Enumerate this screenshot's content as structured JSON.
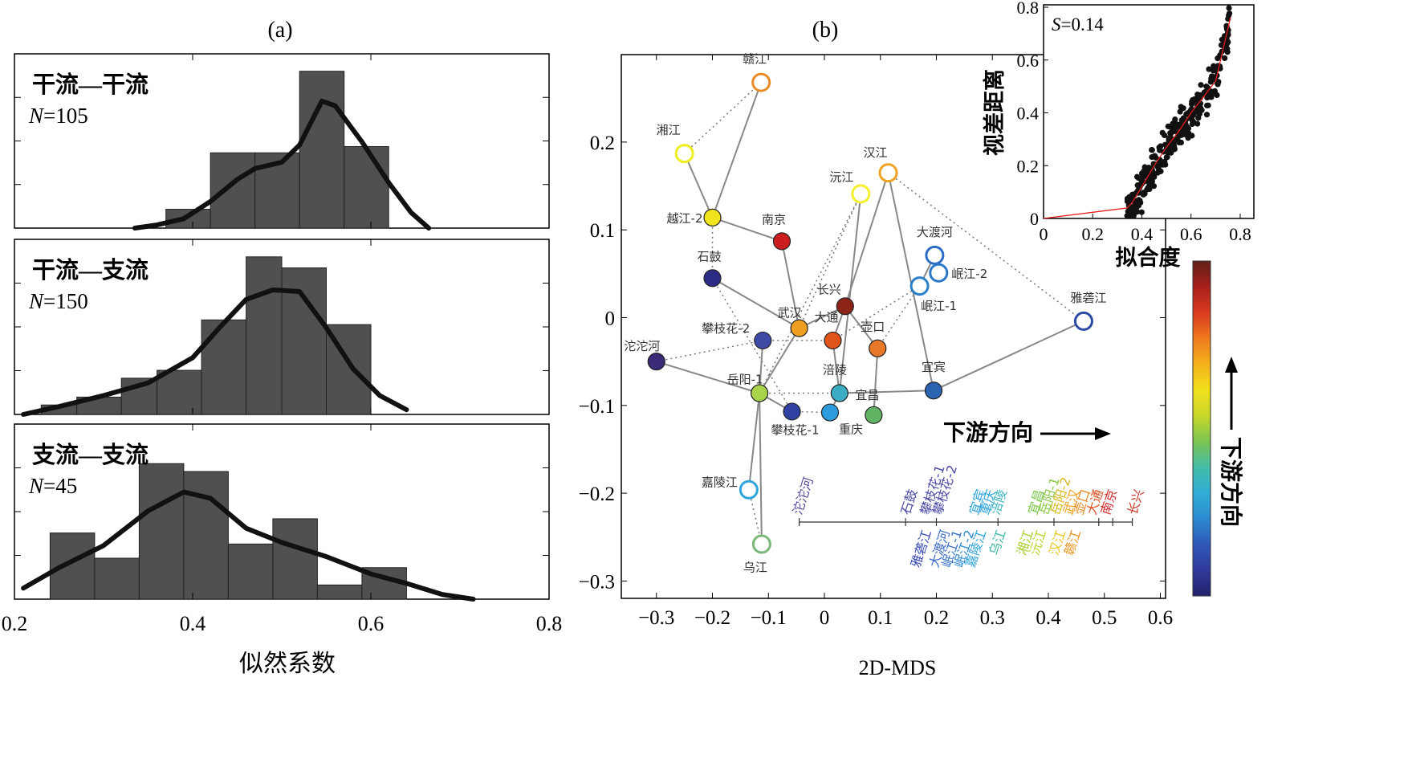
{
  "chart_data": [
    {
      "type": "bar",
      "panel_label": "(a)",
      "xlabel": "似然系数",
      "xlim": [
        0.2,
        0.8
      ],
      "xticks": [
        "0.2",
        "0.4",
        "0.6",
        "0.8"
      ],
      "subplots": [
        {
          "title": "干流—干流",
          "n_label": "N",
          "n_value": "=105",
          "bin_edges": [
            0.37,
            0.42,
            0.47,
            0.52,
            0.57,
            0.62
          ],
          "heights": [
            0.12,
            0.48,
            0.48,
            1.0,
            0.52
          ],
          "curve": [
            [
              0.335,
              0.0
            ],
            [
              0.36,
              0.02
            ],
            [
              0.39,
              0.06
            ],
            [
              0.42,
              0.17
            ],
            [
              0.45,
              0.31
            ],
            [
              0.47,
              0.38
            ],
            [
              0.5,
              0.42
            ],
            [
              0.52,
              0.53
            ],
            [
              0.545,
              0.81
            ],
            [
              0.56,
              0.78
            ],
            [
              0.59,
              0.55
            ],
            [
              0.62,
              0.29
            ],
            [
              0.645,
              0.1
            ],
            [
              0.665,
              0.0
            ]
          ]
        },
        {
          "title": "干流—支流",
          "n_label": "N",
          "n_value": "=150",
          "bin_edges": [
            0.23,
            0.27,
            0.32,
            0.36,
            0.41,
            0.46,
            0.5,
            0.55,
            0.6
          ],
          "heights": [
            0.06,
            0.11,
            0.23,
            0.28,
            0.6,
            1.0,
            0.93,
            0.57,
            0.11
          ],
          "curve": [
            [
              0.21,
              0.0
            ],
            [
              0.25,
              0.05
            ],
            [
              0.3,
              0.12
            ],
            [
              0.35,
              0.2
            ],
            [
              0.4,
              0.36
            ],
            [
              0.43,
              0.55
            ],
            [
              0.46,
              0.73
            ],
            [
              0.49,
              0.79
            ],
            [
              0.52,
              0.78
            ],
            [
              0.55,
              0.55
            ],
            [
              0.58,
              0.29
            ],
            [
              0.61,
              0.12
            ],
            [
              0.64,
              0.03
            ]
          ]
        },
        {
          "title": "支流—支流",
          "n_label": "N",
          "n_value": "=45",
          "bin_edges": [
            0.24,
            0.29,
            0.34,
            0.39,
            0.44,
            0.49,
            0.54,
            0.59,
            0.64
          ],
          "heights": [
            0.42,
            0.26,
            0.86,
            0.81,
            0.35,
            0.51,
            0.09,
            0.2
          ],
          "curve": [
            [
              0.21,
              0.07
            ],
            [
              0.25,
              0.2
            ],
            [
              0.3,
              0.34
            ],
            [
              0.35,
              0.56
            ],
            [
              0.39,
              0.68
            ],
            [
              0.42,
              0.64
            ],
            [
              0.46,
              0.45
            ],
            [
              0.5,
              0.36
            ],
            [
              0.55,
              0.27
            ],
            [
              0.6,
              0.16
            ],
            [
              0.64,
              0.1
            ],
            [
              0.68,
              0.03
            ],
            [
              0.715,
              0.0
            ]
          ]
        }
      ]
    },
    {
      "type": "scatter",
      "panel_label": "(b)",
      "xlabel": "2D-MDS",
      "xlim": [
        -0.35,
        0.62
      ],
      "ylim": [
        -0.32,
        0.3
      ],
      "xticks": [
        "−0.3",
        "−0.2",
        "−0.1",
        "0",
        "0.1",
        "0.2",
        "0.3",
        "0.4",
        "0.5",
        "0.6"
      ],
      "yticks": [
        "−0.3",
        "−0.2",
        "−0.1",
        "0",
        "0.1",
        "0.2"
      ],
      "arrow_label": "下游方向",
      "points": [
        {
          "name": "赣江",
          "x": -0.113,
          "y": 0.268,
          "color": "#ea8a24",
          "filled": false
        },
        {
          "name": "湘江",
          "x": -0.25,
          "y": 0.187,
          "color": "#eeee1e",
          "filled": false
        },
        {
          "name": "越江-2",
          "x": -0.2,
          "y": 0.114,
          "color": "#f0e41c",
          "filled": true
        },
        {
          "name": "南京",
          "x": -0.076,
          "y": 0.087,
          "color": "#cc1e1e",
          "filled": true
        },
        {
          "name": "石鼓",
          "x": -0.2,
          "y": 0.045,
          "color": "#2c2c84",
          "filled": true
        },
        {
          "name": "武汉",
          "x": -0.045,
          "y": -0.012,
          "color": "#f0a020",
          "filled": true
        },
        {
          "name": "攀枝花-2",
          "x": -0.11,
          "y": -0.026,
          "color": "#3e4aa6",
          "filled": true
        },
        {
          "name": "沱沱河",
          "x": -0.3,
          "y": -0.05,
          "color": "#3a2a78",
          "filled": true
        },
        {
          "name": "岳阳-1",
          "x": -0.116,
          "y": -0.086,
          "color": "#a8d44c",
          "filled": true
        },
        {
          "name": "攀枝花-1",
          "x": -0.058,
          "y": -0.107,
          "color": "#3040a0",
          "filled": true
        },
        {
          "name": "大通",
          "x": 0.015,
          "y": -0.026,
          "color": "#e0541c",
          "filled": true
        },
        {
          "name": "涪陵",
          "x": 0.027,
          "y": -0.086,
          "color": "#3aacc4",
          "filled": true
        },
        {
          "name": "重庆",
          "x": 0.01,
          "y": -0.108,
          "color": "#2e9cdc",
          "filled": true
        },
        {
          "name": "宜昌",
          "x": 0.088,
          "y": -0.111,
          "color": "#62b464",
          "filled": true
        },
        {
          "name": "壶口",
          "x": 0.095,
          "y": -0.035,
          "color": "#e67828",
          "filled": true
        },
        {
          "name": "长兴",
          "x": 0.037,
          "y": 0.013,
          "color": "#8c2418",
          "filled": true
        },
        {
          "name": "沅江",
          "x": 0.065,
          "y": 0.141,
          "color": "#f4f02c",
          "filled": false
        },
        {
          "name": "汉江",
          "x": 0.114,
          "y": 0.165,
          "color": "#f0a424",
          "filled": false
        },
        {
          "name": "大渡河",
          "x": 0.197,
          "y": 0.071,
          "color": "#2c6cc4",
          "filled": false
        },
        {
          "name": "岷江-2",
          "x": 0.204,
          "y": 0.051,
          "color": "#2c78c8",
          "filled": false
        },
        {
          "name": "岷江-1",
          "x": 0.17,
          "y": 0.036,
          "color": "#2c80c8",
          "filled": false
        },
        {
          "name": "雅砻江",
          "x": 0.463,
          "y": -0.004,
          "color": "#2c4ca4",
          "filled": false
        },
        {
          "name": "宜宾",
          "x": 0.195,
          "y": -0.083,
          "color": "#2a64b0",
          "filled": true
        },
        {
          "name": "嘉陵江",
          "x": -0.135,
          "y": -0.196,
          "color": "#2ea4dc",
          "filled": false
        },
        {
          "name": "乌江",
          "x": -0.112,
          "y": -0.258,
          "color": "#7ab87a",
          "filled": false
        }
      ],
      "solid_links": [
        [
          "赣江",
          "越江-2"
        ],
        [
          "越江-2",
          "湘江"
        ],
        [
          "越江-2",
          "南京"
        ],
        [
          "南京",
          "武汉"
        ],
        [
          "石鼓",
          "武汉"
        ],
        [
          "武汉",
          "岳阳-1"
        ],
        [
          "沱沱河",
          "岳阳-1"
        ],
        [
          "攀枝花-2",
          "岳阳-1"
        ],
        [
          "岳阳-1",
          "嘉陵江"
        ],
        [
          "岳阳-1",
          "乌江"
        ],
        [
          "岳阳-1",
          "攀枝花-1"
        ],
        [
          "武汉",
          "长兴"
        ],
        [
          "长兴",
          "大通"
        ],
        [
          "长兴",
          "壶口"
        ],
        [
          "大通",
          "涪陵"
        ],
        [
          "涪陵",
          "重庆"
        ],
        [
          "壶口",
          "宜昌"
        ],
        [
          "沅江",
          "涪陵"
        ],
        [
          "汉江",
          "长兴"
        ],
        [
          "汉江",
          "宜宾"
        ],
        [
          "宜宾",
          "雅砻江"
        ],
        [
          "宜宾",
          "涪陵"
        ],
        [
          "大渡河",
          "岷江-2"
        ],
        [
          "大渡河",
          "岷江-1"
        ]
      ],
      "dotted_links": [
        [
          "湘江",
          "赣江"
        ],
        [
          "越江-2",
          "石鼓"
        ],
        [
          "石鼓",
          "攀枝花-1"
        ],
        [
          "沱沱河",
          "攀枝花-2"
        ],
        [
          "攀枝花-2",
          "大通"
        ],
        [
          "武汉",
          "沅江"
        ],
        [
          "岳阳-1",
          "沅江"
        ],
        [
          "大通",
          "岷江-1"
        ],
        [
          "汉江",
          "雅砻江"
        ],
        [
          "嘉陵江",
          "乌江"
        ],
        [
          "攀枝花-1",
          "重庆"
        ],
        [
          "岳阳-1",
          "涪陵"
        ],
        [
          "壶口",
          "岷江-1"
        ]
      ],
      "dendrogram_top": [
        {
          "name": "沱沱河",
          "pos": -0.05,
          "color": "#5a4aa0"
        },
        {
          "name": "石鼓",
          "pos": 0.143,
          "color": "#4a4aa6"
        },
        {
          "name": "攀枝花-1",
          "pos": 0.178,
          "color": "#4a4aa6"
        },
        {
          "name": "攀枝花-2",
          "pos": 0.2,
          "color": "#4a4aa6"
        },
        {
          "name": "宜宾",
          "pos": 0.265,
          "color": "#2ea4dc"
        },
        {
          "name": "重庆",
          "pos": 0.283,
          "color": "#2ea4dc"
        },
        {
          "name": "涪陵",
          "pos": 0.303,
          "color": "#3ab4c0"
        },
        {
          "name": "宜昌",
          "pos": 0.37,
          "color": "#7ac84a"
        },
        {
          "name": "岳阳-1",
          "pos": 0.39,
          "color": "#8ac84a"
        },
        {
          "name": "岳阳-2",
          "pos": 0.41,
          "color": "#d8b81c"
        },
        {
          "name": "武汉",
          "pos": 0.433,
          "color": "#f0a020"
        },
        {
          "name": "壶口",
          "pos": 0.452,
          "color": "#e88a24"
        },
        {
          "name": "大通",
          "pos": 0.475,
          "color": "#e05424"
        },
        {
          "name": "南京",
          "pos": 0.5,
          "color": "#cc2a2a"
        },
        {
          "name": "长兴",
          "pos": 0.548,
          "color": "#c83c2c"
        }
      ],
      "dendrogram_bottom": [
        {
          "name": "雅砻江",
          "pos": 0.185,
          "color": "#3a4cb4"
        },
        {
          "name": "大渡河",
          "pos": 0.218,
          "color": "#3a6cc8"
        },
        {
          "name": "岷江-1",
          "pos": 0.24,
          "color": "#3a74c8"
        },
        {
          "name": "岷江-2",
          "pos": 0.262,
          "color": "#2c8ad0"
        },
        {
          "name": "嘉陵江",
          "pos": 0.283,
          "color": "#2ea4dc"
        },
        {
          "name": "乌江",
          "pos": 0.318,
          "color": "#3ab4a4"
        },
        {
          "name": "湘江",
          "pos": 0.367,
          "color": "#a8d02c"
        },
        {
          "name": "沅江",
          "pos": 0.39,
          "color": "#b8d42c"
        },
        {
          "name": "汉江",
          "pos": 0.425,
          "color": "#e8c41c"
        },
        {
          "name": "赣江",
          "pos": 0.452,
          "color": "#e8941c"
        }
      ],
      "colorbar_label": "下游方向",
      "colorbar_colors": [
        "#23216b",
        "#2e3a9a",
        "#2f58b8",
        "#2c8ad0",
        "#30aed6",
        "#44bca8",
        "#7cc450",
        "#c8d62a",
        "#f2e01c",
        "#f4b21c",
        "#ee7a1e",
        "#d83a20",
        "#a8201c",
        "#602018"
      ]
    },
    {
      "type": "scatter",
      "subtitle_var": "S",
      "subtitle_value": "=0.14",
      "xlabel": "拟合度",
      "ylabel": "视差距离",
      "xlim": [
        0,
        0.85
      ],
      "ylim": [
        0,
        0.8
      ],
      "xticks": [
        "0",
        "0.2",
        "0.4",
        "0.6",
        "0.8"
      ],
      "yticks": [
        "0",
        "0.2",
        "0.4",
        "0.6",
        "0.8"
      ],
      "fit_line": [
        [
          0.0,
          0.0
        ],
        [
          0.34,
          0.04
        ],
        [
          0.36,
          0.06
        ],
        [
          0.4,
          0.12
        ],
        [
          0.45,
          0.2
        ],
        [
          0.5,
          0.27
        ],
        [
          0.55,
          0.33
        ],
        [
          0.6,
          0.4
        ],
        [
          0.65,
          0.46
        ],
        [
          0.7,
          0.52
        ],
        [
          0.72,
          0.6
        ],
        [
          0.74,
          0.68
        ],
        [
          0.76,
          0.76
        ]
      ]
    }
  ]
}
